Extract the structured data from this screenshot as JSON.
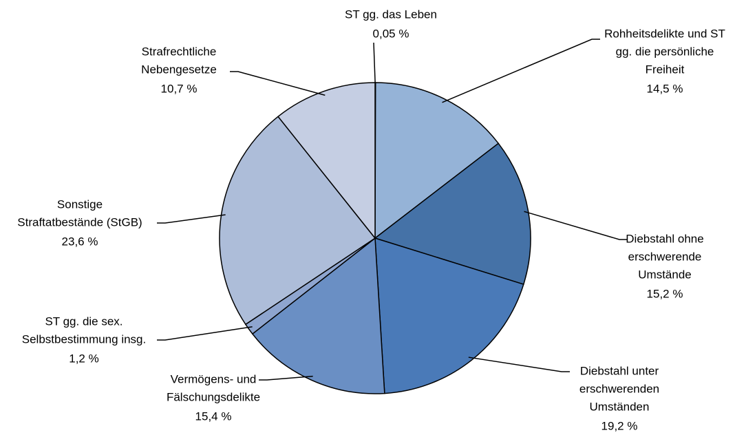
{
  "chart_data": {
    "type": "pie",
    "categories": [
      [
        "ST gg. das Leben"
      ],
      [
        "Rohheitsdelikte und ST",
        "gg. die persönliche",
        "Freiheit"
      ],
      [
        "Diebstahl ohne",
        "erschwerende",
        "Umstände"
      ],
      [
        "Diebstahl unter",
        "erschwerenden",
        "Umständen"
      ],
      [
        "Vermögens- und",
        "Fälschungsdelikte"
      ],
      [
        "ST gg. die sex.",
        "Selbstbestimmung insg."
      ],
      [
        "Sonstige",
        "Straftatbestände (StGB)"
      ],
      [
        "Strafrechtliche",
        "Nebengesetze"
      ]
    ],
    "values": [
      0.05,
      14.5,
      15.2,
      19.2,
      15.4,
      1.2,
      23.6,
      10.7
    ],
    "value_labels": [
      "0,05 %",
      "14,5 %",
      "15,2 %",
      "19,2 %",
      "15,4 %",
      "1,2 %",
      "23,6 %",
      "10,7 %"
    ],
    "colors": [
      "#8fa9d4",
      "#95b3d7",
      "#4572a7",
      "#4a7ab8",
      "#6a8fc4",
      "#8ea5cf",
      "#adbdd9",
      "#c5cee3"
    ]
  }
}
